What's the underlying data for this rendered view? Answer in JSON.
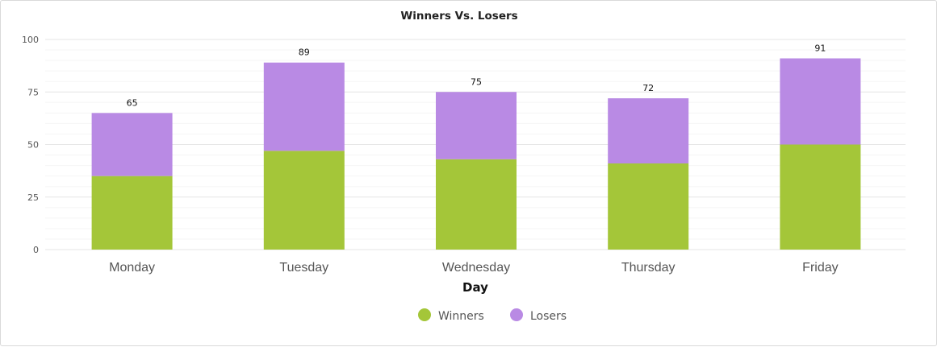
{
  "chart_data": {
    "type": "bar",
    "stacked": true,
    "title": "Winners Vs. Losers",
    "xlabel": "Day",
    "ylabel": "",
    "categories": [
      "Monday",
      "Tuesday",
      "Wednesday",
      "Thursday",
      "Friday"
    ],
    "series": [
      {
        "name": "Winners",
        "values": [
          35,
          47,
          43,
          41,
          50
        ],
        "color": "#a4c639"
      },
      {
        "name": "Losers",
        "values": [
          30,
          42,
          32,
          31,
          41
        ],
        "color": "#b98ae4"
      }
    ],
    "totals": [
      65,
      89,
      75,
      72,
      91
    ],
    "ylim": [
      0,
      100
    ],
    "yticks": [
      0,
      25,
      50,
      75,
      100
    ],
    "grid": true,
    "legend": "bottom-center"
  }
}
